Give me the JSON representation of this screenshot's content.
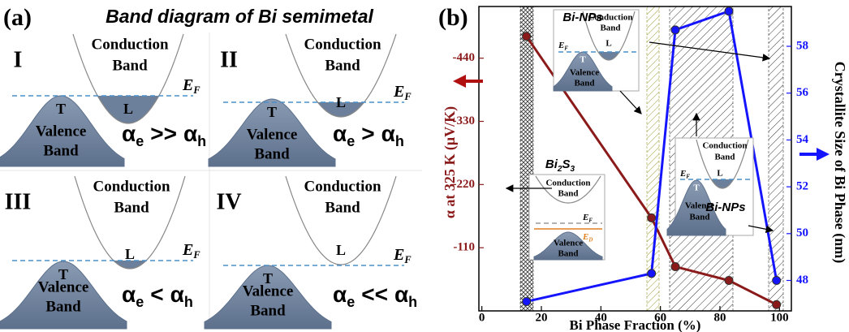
{
  "panel_a": {
    "label": "(a)",
    "title": "Band diagram of Bi semimetal",
    "cases": [
      {
        "numeral": "I",
        "conduction": [
          "Conduction",
          "Band"
        ],
        "l_label": "L",
        "t_label": "T",
        "valence": [
          "Valence",
          "Band"
        ],
        "ef": {
          "main": "E",
          "sub": "F"
        },
        "relation": {
          "lhs": "α",
          "lhs_sub": "e",
          "op": ">>",
          "rhs": "α",
          "rhs_sub": "h"
        }
      },
      {
        "numeral": "II",
        "conduction": [
          "Conduction",
          "Band"
        ],
        "l_label": "L",
        "t_label": "T",
        "valence": [
          "Valence",
          "Band"
        ],
        "ef": {
          "main": "E",
          "sub": "F"
        },
        "relation": {
          "lhs": "α",
          "lhs_sub": "e",
          "op": ">",
          "rhs": "α",
          "rhs_sub": "h"
        }
      },
      {
        "numeral": "III",
        "conduction": [
          "Conduction",
          "Band"
        ],
        "l_label": "L",
        "t_label": "T",
        "valence": [
          "Valence",
          "Band"
        ],
        "ef": {
          "main": "E",
          "sub": "F"
        },
        "relation": {
          "lhs": "α",
          "lhs_sub": "e",
          "op": "<",
          "rhs": "α",
          "rhs_sub": "h"
        }
      },
      {
        "numeral": "IV",
        "conduction": [
          "Conduction",
          "Band"
        ],
        "l_label": "L",
        "t_label": "T",
        "valence": [
          "Valence",
          "Band"
        ],
        "ef": {
          "main": "E",
          "sub": "F"
        },
        "relation": {
          "lhs": "α",
          "lhs_sub": "e",
          "op": "<<",
          "rhs": "α",
          "rhs_sub": "h"
        }
      }
    ]
  },
  "chart_data": {
    "type": "line",
    "panel_label": "(b)",
    "x_label": "Bi Phase Fraction (%)",
    "y_label": "α at 325 K (μV/K)",
    "y2_label": "Crystallite Size of Bi Phase (nm)",
    "x": [
      15,
      57,
      65,
      83,
      99
    ],
    "series": [
      {
        "color": "#8b1a1a",
        "values": [
          -478,
          -162,
          -77,
          -53,
          -11
        ]
      },
      {
        "color": "#1414ff",
        "axis": "y2",
        "values": [
          47.1,
          48.3,
          58.7,
          59.5,
          48.0
        ]
      }
    ],
    "xlim": [
      -1,
      104
    ],
    "xticks": [
      0,
      20,
      40,
      60,
      80,
      100
    ],
    "ylim": [
      0,
      -530
    ],
    "yticks": [
      -440,
      -330,
      -220,
      -110
    ],
    "y2lim": [
      46.7,
      59.7
    ],
    "y2ticks": [
      48,
      50,
      52,
      54,
      56,
      58
    ],
    "insets": [
      {
        "title": "Bi-NPs",
        "conduction": [
          "Conduction",
          "Band"
        ],
        "l_label": "L",
        "t_label": "T",
        "valence": [
          "Valence",
          "Band"
        ],
        "ef": {
          "main": "E",
          "sub": "F"
        }
      },
      {
        "title": {
          "parts": [
            "Bi",
            "2",
            "S",
            "3"
          ]
        },
        "conduction": [
          "Conduction",
          "Band"
        ],
        "valence": [
          "Valence",
          "Band"
        ],
        "ef": {
          "main": "E",
          "sub": "F"
        },
        "ed": {
          "main": "E",
          "sub": "D"
        }
      },
      {
        "title": "Bi-NPs",
        "conduction": [
          "Conduction",
          "Band"
        ],
        "l_label": "L",
        "t_label": "T",
        "valence": [
          "Valence",
          "Band"
        ],
        "ef": {
          "main": "E",
          "sub": "F"
        }
      }
    ]
  }
}
